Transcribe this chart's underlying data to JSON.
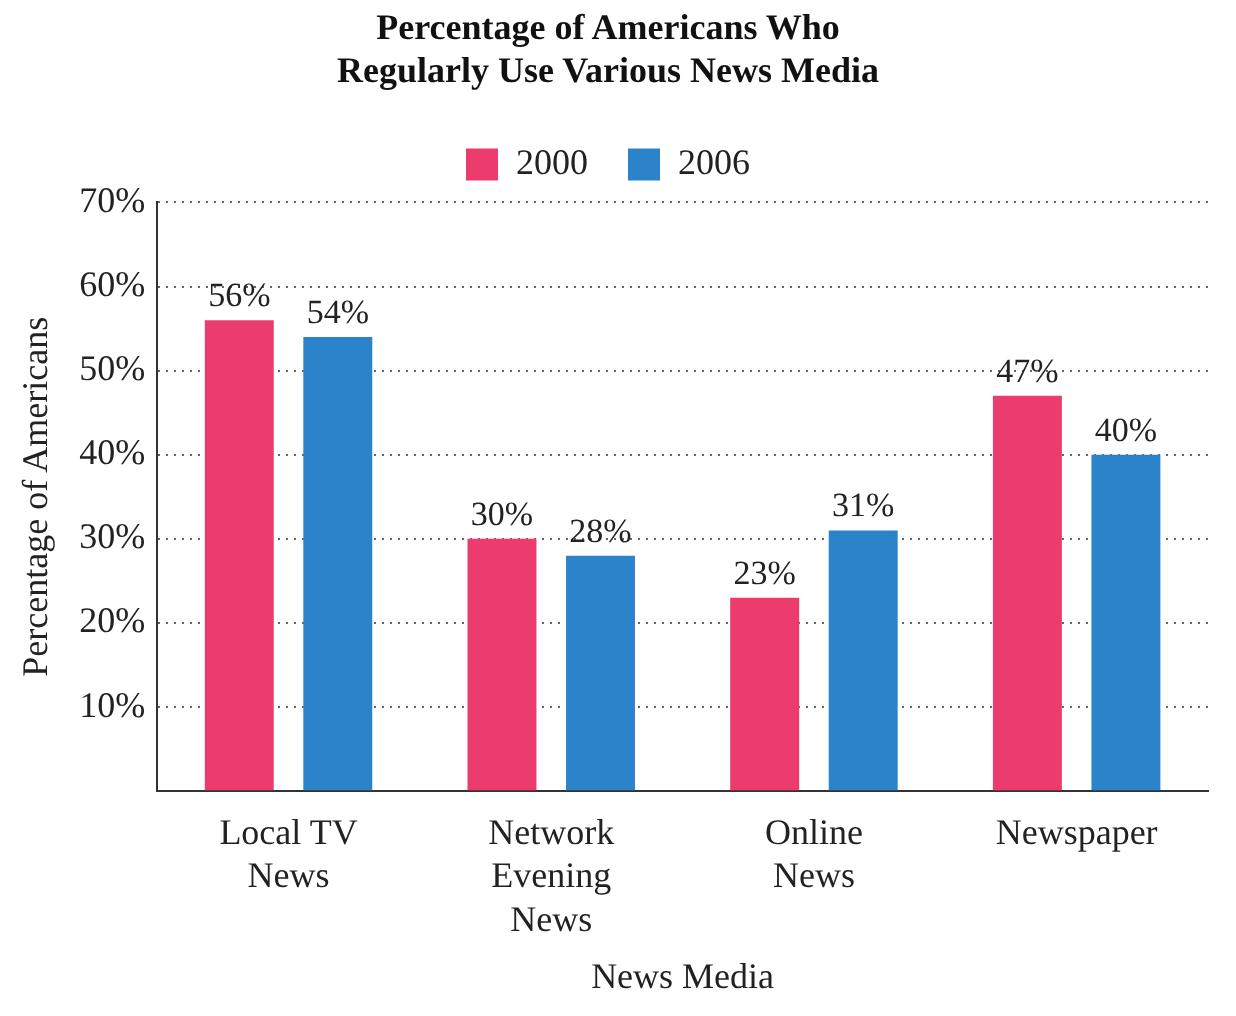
{
  "chart_data": {
    "type": "bar",
    "title": "Percentage of Americans Who Regularly Use Various News Media",
    "xlabel": "News Media",
    "ylabel": "Percentage of Americans",
    "categories": [
      "Local TV News",
      "Network Evening News",
      "Online News",
      "Newspaper"
    ],
    "series": [
      {
        "name": "2000",
        "color": "#ec3c6e",
        "values": [
          56,
          30,
          23,
          47
        ],
        "value_labels": [
          "56%",
          "30%",
          "23%",
          "47%"
        ]
      },
      {
        "name": "2006",
        "color": "#2b84c9",
        "values": [
          54,
          28,
          31,
          40
        ],
        "value_labels": [
          "54%",
          "28%",
          "31%",
          "40%"
        ]
      }
    ],
    "ylim": [
      0,
      70
    ],
    "yticks": [
      {
        "value": 0,
        "label": null
      },
      {
        "value": 10,
        "label": "10%"
      },
      {
        "value": 20,
        "label": "20%"
      },
      {
        "value": 30,
        "label": "30%"
      },
      {
        "value": 40,
        "label": "40%"
      },
      {
        "value": 50,
        "label": "50%"
      },
      {
        "value": 60,
        "label": "60%"
      },
      {
        "value": 70,
        "label": "70%"
      }
    ],
    "grid": "y",
    "legend": "top"
  }
}
